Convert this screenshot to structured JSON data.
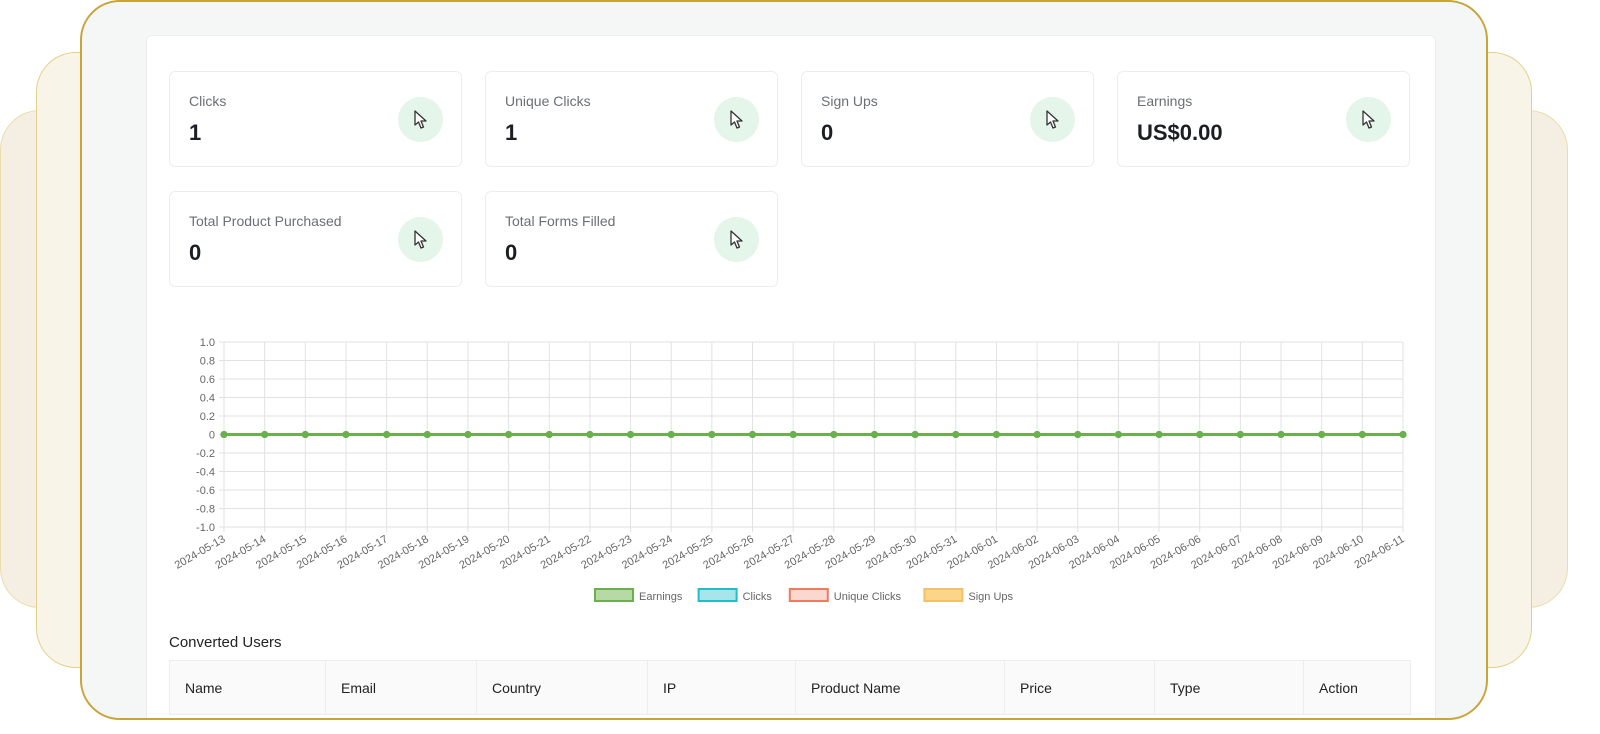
{
  "cards": [
    {
      "label": "Clicks",
      "value": "1",
      "icon": "cursor-icon"
    },
    {
      "label": "Unique Clicks",
      "value": "1",
      "icon": "cursor-icon"
    },
    {
      "label": "Sign Ups",
      "value": "0",
      "icon": "cursor-icon"
    },
    {
      "label": "Earnings",
      "value": "US$0.00",
      "icon": "cursor-icon"
    },
    {
      "label": "Total Product Purchased",
      "value": "0",
      "icon": "cursor-icon"
    },
    {
      "label": "Total Forms Filled",
      "value": "0",
      "icon": "cursor-icon"
    }
  ],
  "chart_data": {
    "type": "line",
    "x": [
      "2024-05-13",
      "2024-05-14",
      "2024-05-15",
      "2024-05-16",
      "2024-05-17",
      "2024-05-18",
      "2024-05-19",
      "2024-05-20",
      "2024-05-21",
      "2024-05-22",
      "2024-05-23",
      "2024-05-24",
      "2024-05-25",
      "2024-05-26",
      "2024-05-27",
      "2024-05-28",
      "2024-05-29",
      "2024-05-30",
      "2024-05-31",
      "2024-06-01",
      "2024-06-02",
      "2024-06-03",
      "2024-06-04",
      "2024-06-05",
      "2024-06-06",
      "2024-06-07",
      "2024-06-08",
      "2024-06-09",
      "2024-06-10",
      "2024-06-11"
    ],
    "series": [
      {
        "name": "Earnings",
        "color": "#6ab04c",
        "fill": "#b6d9a6",
        "values": [
          0,
          0,
          0,
          0,
          0,
          0,
          0,
          0,
          0,
          0,
          0,
          0,
          0,
          0,
          0,
          0,
          0,
          0,
          0,
          0,
          0,
          0,
          0,
          0,
          0,
          0,
          0,
          0,
          0,
          0
        ]
      },
      {
        "name": "Clicks",
        "color": "#22bccc",
        "fill": "#a6e6ea",
        "values": [
          0,
          0,
          0,
          0,
          0,
          0,
          0,
          0,
          0,
          0,
          0,
          0,
          0,
          0,
          0,
          0,
          0,
          0,
          0,
          0,
          0,
          0,
          0,
          0,
          0,
          0,
          0,
          0,
          0,
          0
        ]
      },
      {
        "name": "Unique Clicks",
        "color": "#f07a5e",
        "fill": "#fbd8cf",
        "values": [
          0,
          0,
          0,
          0,
          0,
          0,
          0,
          0,
          0,
          0,
          0,
          0,
          0,
          0,
          0,
          0,
          0,
          0,
          0,
          0,
          0,
          0,
          0,
          0,
          0,
          0,
          0,
          0,
          0,
          0
        ]
      },
      {
        "name": "Sign Ups",
        "color": "#f0c264",
        "fill": "#fcd58a",
        "values": [
          0,
          0,
          0,
          0,
          0,
          0,
          0,
          0,
          0,
          0,
          0,
          0,
          0,
          0,
          0,
          0,
          0,
          0,
          0,
          0,
          0,
          0,
          0,
          0,
          0,
          0,
          0,
          0,
          0,
          0
        ]
      }
    ],
    "yticks": [
      "1.0",
      "0.8",
      "0.6",
      "0.4",
      "0.2",
      "0",
      "-0.2",
      "-0.4",
      "-0.6",
      "-0.8",
      "-1.0"
    ],
    "ylim": [
      -1,
      1
    ],
    "grid": true,
    "legend": "bottom"
  },
  "table": {
    "title": "Converted Users",
    "columns": [
      "Name",
      "Email",
      "Country",
      "IP",
      "Product Name",
      "Price",
      "Type",
      "Action"
    ]
  }
}
